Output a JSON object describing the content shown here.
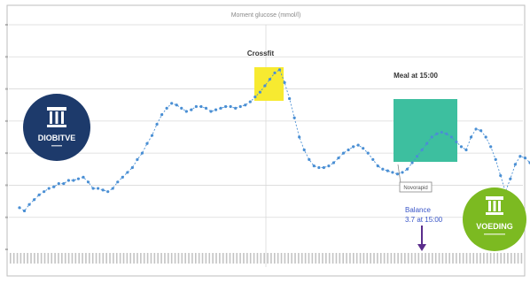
{
  "chart_data": {
    "type": "line",
    "title": "Moment glucose (mmol/l)",
    "xlabel": "",
    "ylabel": "",
    "ylim": [
      3,
      10
    ],
    "grid": true,
    "legend": "none",
    "series": [
      {
        "color": "#4a8fd4",
        "values": [
          4.3,
          4.2,
          4.4,
          4.55,
          4.7,
          4.8,
          4.9,
          4.95,
          5.05,
          5.05,
          5.15,
          5.15,
          5.2,
          5.25,
          5.1,
          4.9,
          4.9,
          4.85,
          4.8,
          4.9,
          5.1,
          5.25,
          5.4,
          5.55,
          5.8,
          6.0,
          6.3,
          6.55,
          6.9,
          7.2,
          7.4,
          7.55,
          7.5,
          7.4,
          7.3,
          7.35,
          7.45,
          7.45,
          7.4,
          7.3,
          7.35,
          7.4,
          7.45,
          7.45,
          7.4,
          7.45,
          7.5,
          7.6,
          7.75,
          7.9,
          8.1,
          8.3,
          8.5,
          8.6,
          8.2,
          7.7,
          7.1,
          6.5,
          6.1,
          5.8,
          5.6,
          5.55,
          5.55,
          5.6,
          5.7,
          5.85,
          6.0,
          6.1,
          6.2,
          6.25,
          6.15,
          6.0,
          5.8,
          5.6,
          5.5,
          5.45,
          5.4,
          5.35,
          5.4,
          5.5,
          5.7,
          5.9,
          6.1,
          6.3,
          6.5,
          6.6,
          6.65,
          6.6,
          6.5,
          6.35,
          6.2,
          6.1,
          6.5,
          6.75,
          6.7,
          6.5,
          6.2,
          5.8,
          5.3,
          4.8,
          5.2,
          5.65,
          5.9,
          5.85,
          5.7
        ]
      }
    ],
    "annotations": {
      "crossfit": "Crossfit",
      "meal": "Meal at 15:00",
      "insulin_tag": "Novorapid",
      "balance_line1": "Balance",
      "balance_line2": "3.7 at 15:00"
    },
    "colors": {
      "crossfit_box": "#f7ea30",
      "meal_box": "#3dbf9f",
      "grid": "#d9d9d9",
      "balance_text": "#3a56c8",
      "arrow": "#5a2d8c"
    }
  },
  "logos": {
    "left": {
      "text": "DIOBITVE",
      "color": "#1d3a6b"
    },
    "right": {
      "text": "VOEDING",
      "color": "#7cba21"
    }
  }
}
